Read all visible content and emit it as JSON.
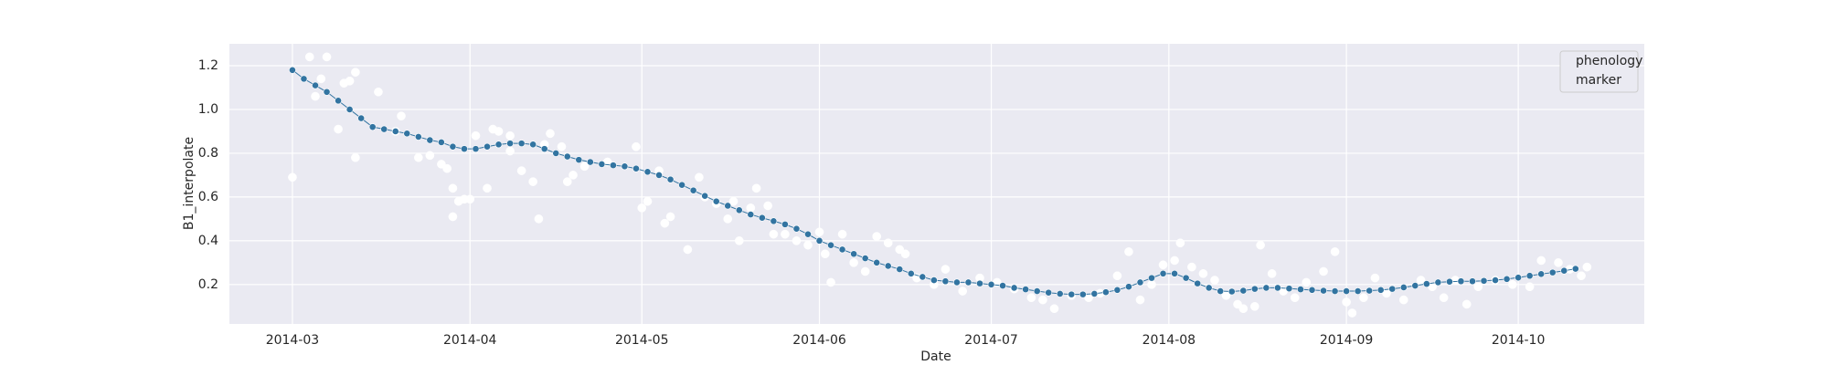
{
  "chart_data": {
    "type": "scatter-line",
    "x_label": "Date",
    "y_label": "B1_interpolate",
    "legend_title": "phenology",
    "legend": "upper right",
    "grid": true,
    "xlim": [
      -11,
      236
    ],
    "ylim": [
      0.02,
      1.3
    ],
    "xticks": [
      {
        "value": 0,
        "label": "2014-03"
      },
      {
        "value": 31,
        "label": "2014-04"
      },
      {
        "value": 61,
        "label": "2014-05"
      },
      {
        "value": 92,
        "label": "2014-06"
      },
      {
        "value": 122,
        "label": "2014-07"
      },
      {
        "value": 153,
        "label": "2014-08"
      },
      {
        "value": 184,
        "label": "2014-09"
      },
      {
        "value": 214,
        "label": "2014-10"
      }
    ],
    "yticks": [
      0.2,
      0.4,
      0.6,
      0.8,
      {
        "value": 1,
        "label": "1.0"
      },
      1.2
    ],
    "series": [
      {
        "name": "marker",
        "color": "#ffffff",
        "style": "points",
        "x": [
          0,
          3,
          4,
          5,
          6,
          8,
          9,
          10,
          11,
          11,
          15,
          18,
          19,
          22,
          24,
          26,
          27,
          28,
          28,
          29,
          30,
          31,
          32,
          34,
          35,
          36,
          38,
          38,
          40,
          42,
          43,
          44,
          45,
          47,
          48,
          49,
          51,
          55,
          60,
          61,
          62,
          64,
          65,
          66,
          69,
          71,
          72,
          74,
          76,
          77,
          78,
          80,
          81,
          83,
          84,
          86,
          88,
          90,
          92,
          93,
          94,
          96,
          98,
          100,
          102,
          104,
          106,
          107,
          109,
          112,
          114,
          117,
          120,
          123,
          126,
          129,
          131,
          133,
          136,
          139,
          141,
          144,
          146,
          148,
          150,
          152,
          154,
          155,
          157,
          159,
          161,
          163,
          165,
          166,
          168,
          169,
          171,
          173,
          175,
          177,
          180,
          182,
          184,
          185,
          187,
          189,
          191,
          194,
          197,
          199,
          201,
          203,
          205,
          207,
          210,
          213,
          216,
          218,
          221,
          223,
          225,
          226
        ],
        "values": [
          0.69,
          1.24,
          1.06,
          1.14,
          1.24,
          0.91,
          1.12,
          1.13,
          1.17,
          0.78,
          1.08,
          0.9,
          0.97,
          0.78,
          0.79,
          0.75,
          0.73,
          0.64,
          0.51,
          0.58,
          0.59,
          0.59,
          0.88,
          0.64,
          0.91,
          0.9,
          0.81,
          0.88,
          0.72,
          0.67,
          0.5,
          0.84,
          0.89,
          0.83,
          0.67,
          0.7,
          0.74,
          0.76,
          0.83,
          0.55,
          0.58,
          0.72,
          0.48,
          0.51,
          0.36,
          0.69,
          0.6,
          0.57,
          0.5,
          0.58,
          0.4,
          0.55,
          0.64,
          0.56,
          0.43,
          0.43,
          0.4,
          0.38,
          0.44,
          0.34,
          0.21,
          0.43,
          0.3,
          0.26,
          0.42,
          0.39,
          0.36,
          0.34,
          0.23,
          0.2,
          0.27,
          0.17,
          0.23,
          0.21,
          0.18,
          0.14,
          0.13,
          0.09,
          0.15,
          0.14,
          0.16,
          0.24,
          0.35,
          0.13,
          0.2,
          0.29,
          0.31,
          0.39,
          0.28,
          0.25,
          0.22,
          0.15,
          0.11,
          0.09,
          0.1,
          0.38,
          0.25,
          0.17,
          0.14,
          0.21,
          0.26,
          0.35,
          0.12,
          0.07,
          0.14,
          0.23,
          0.16,
          0.13,
          0.22,
          0.19,
          0.14,
          0.22,
          0.11,
          0.19,
          0.22,
          0.2,
          0.19,
          0.31,
          0.3,
          0.27,
          0.24,
          0.28
        ]
      },
      {
        "color": "#3274a1",
        "style": "line-markers",
        "x": [
          0,
          2,
          4,
          6,
          8,
          10,
          12,
          14,
          16,
          18,
          20,
          22,
          24,
          26,
          28,
          30,
          32,
          34,
          36,
          38,
          40,
          42,
          44,
          46,
          48,
          50,
          52,
          54,
          56,
          58,
          60,
          62,
          64,
          66,
          68,
          70,
          72,
          74,
          76,
          78,
          80,
          82,
          84,
          86,
          88,
          90,
          92,
          94,
          96,
          98,
          100,
          102,
          104,
          106,
          108,
          110,
          112,
          114,
          116,
          118,
          120,
          122,
          124,
          126,
          128,
          130,
          132,
          134,
          136,
          138,
          140,
          142,
          144,
          146,
          148,
          150,
          152,
          154,
          156,
          158,
          160,
          162,
          164,
          166,
          168,
          170,
          172,
          174,
          176,
          178,
          180,
          182,
          184,
          186,
          188,
          190,
          192,
          194,
          196,
          198,
          200,
          202,
          204,
          206,
          208,
          210,
          212,
          214,
          216,
          218,
          220,
          222,
          224
        ],
        "values": [
          1.18,
          1.14,
          1.11,
          1.08,
          1.04,
          1.0,
          0.96,
          0.92,
          0.91,
          0.9,
          0.89,
          0.875,
          0.86,
          0.85,
          0.83,
          0.82,
          0.82,
          0.83,
          0.84,
          0.845,
          0.845,
          0.84,
          0.82,
          0.8,
          0.785,
          0.77,
          0.76,
          0.75,
          0.745,
          0.74,
          0.73,
          0.715,
          0.7,
          0.68,
          0.655,
          0.63,
          0.605,
          0.58,
          0.56,
          0.54,
          0.52,
          0.505,
          0.49,
          0.475,
          0.455,
          0.43,
          0.4,
          0.38,
          0.36,
          0.34,
          0.32,
          0.3,
          0.285,
          0.27,
          0.25,
          0.235,
          0.22,
          0.215,
          0.21,
          0.21,
          0.205,
          0.2,
          0.195,
          0.185,
          0.178,
          0.17,
          0.163,
          0.158,
          0.155,
          0.155,
          0.158,
          0.165,
          0.175,
          0.19,
          0.21,
          0.23,
          0.25,
          0.25,
          0.23,
          0.205,
          0.185,
          0.17,
          0.168,
          0.172,
          0.18,
          0.185,
          0.185,
          0.182,
          0.178,
          0.175,
          0.172,
          0.17,
          0.17,
          0.17,
          0.172,
          0.175,
          0.18,
          0.187,
          0.195,
          0.203,
          0.21,
          0.213,
          0.215,
          0.215,
          0.217,
          0.22,
          0.225,
          0.232,
          0.24,
          0.248,
          0.255,
          0.263,
          0.272
        ]
      }
    ]
  }
}
